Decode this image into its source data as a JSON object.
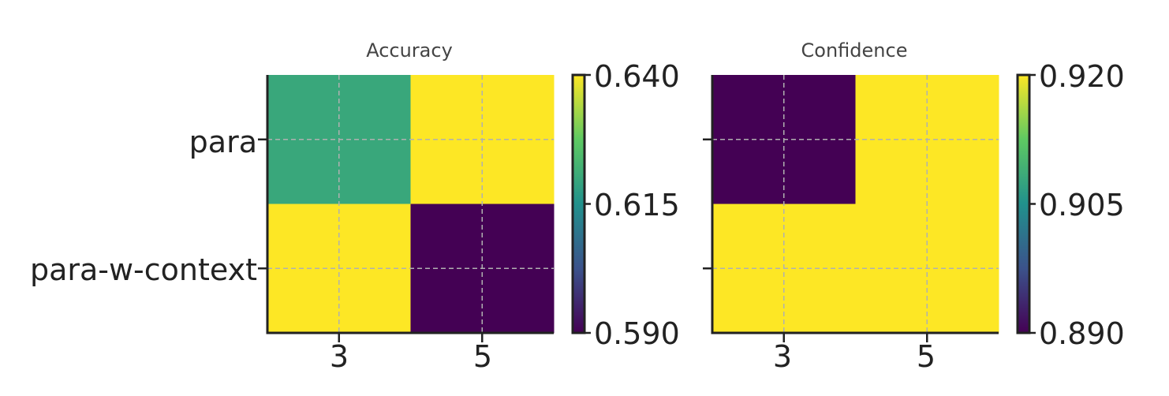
{
  "chart_data": [
    {
      "type": "heatmap",
      "title": "Accuracy",
      "x_categories": [
        "3",
        "5"
      ],
      "y_categories": [
        "para",
        "para-w-context"
      ],
      "values": [
        [
          0.62,
          0.64
        ],
        [
          0.64,
          0.59
        ]
      ],
      "colorbar": {
        "range": [
          0.59,
          0.64
        ],
        "ticks": [
          "0.640",
          "0.615",
          "0.590"
        ],
        "tick_values": [
          0.64,
          0.615,
          0.59
        ]
      },
      "colormap": "viridis",
      "grid": true,
      "show_y_labels": true
    },
    {
      "type": "heatmap",
      "title": "Confidence",
      "x_categories": [
        "3",
        "5"
      ],
      "y_categories": [
        "para",
        "para-w-context"
      ],
      "values": [
        [
          0.89,
          0.92
        ],
        [
          0.92,
          0.92
        ]
      ],
      "colorbar": {
        "range": [
          0.89,
          0.92
        ],
        "ticks": [
          "0.920",
          "0.905",
          "0.890"
        ],
        "tick_values": [
          0.92,
          0.905,
          0.89
        ]
      },
      "colormap": "viridis",
      "grid": true,
      "show_y_labels": false
    }
  ],
  "colors": {
    "axis": "#222222",
    "grid": "#b0b0b0",
    "title": "#444444",
    "text": "#222222"
  }
}
